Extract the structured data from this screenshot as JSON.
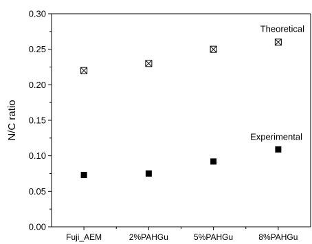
{
  "chart_data": {
    "type": "scatter",
    "title": "",
    "xlabel": "",
    "ylabel": "N/C ratio",
    "ylim": [
      0.0,
      0.3
    ],
    "yticks": [
      "0.00",
      "0.05",
      "0.10",
      "0.15",
      "0.20",
      "0.25",
      "0.30"
    ],
    "grid": false,
    "categories": [
      "Fuji_AEM",
      "2%PAHGu",
      "5%PAHGu",
      "8%PAHGu"
    ],
    "series": [
      {
        "name": "Theoretical",
        "marker": "square-with-x",
        "color": "#000000",
        "values": [
          0.22,
          0.23,
          0.25,
          0.26
        ]
      },
      {
        "name": "Experimental",
        "marker": "filled-square",
        "color": "#000000",
        "values": [
          0.073,
          0.075,
          0.092,
          0.109
        ]
      }
    ]
  }
}
